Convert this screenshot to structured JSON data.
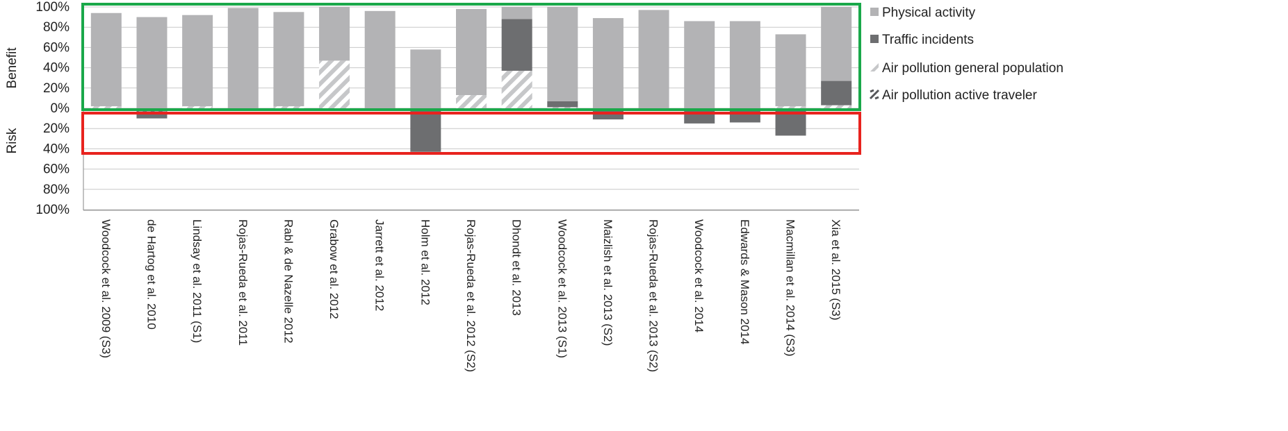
{
  "chart_data": {
    "type": "bar",
    "stacked": true,
    "diverging": true,
    "title": "",
    "ylabel_benefit": "Benefit",
    "ylabel_risk": "Risk",
    "yticks_benefit": [
      "100%",
      "80%",
      "60%",
      "40%",
      "20%",
      "0%"
    ],
    "yticks_risk": [
      "20%",
      "40%",
      "60%",
      "80%",
      "100%"
    ],
    "ylim": [
      -100,
      100
    ],
    "grid": true,
    "legend_position": "right",
    "categories": [
      "Woodcock et al. 2009 (S3)",
      "de Hartog et al. 2010",
      "Lindsay et al. 2011 (S1)",
      "Rojas-Rueda et al. 2011",
      "Rabl & de Nazelle 2012",
      "Grabow et al. 2012",
      "Jarrett et al. 2012",
      "Holm et al. 2012",
      "Rojas-Rueda et al. 2012 (S2)",
      "Dhondt et al. 2013",
      "Woodcock et al. 2013 (S1)",
      "Maizlish et al. 2013 (S2)",
      "Rojas-Rueda et al. 2013 (S2)",
      "Woodcock et al. 2014",
      "Edwards & Mason 2014",
      "Macmillan et al. 2014 (S3)",
      "Xia et al. 2015 (S3)"
    ],
    "series": [
      {
        "name": "Physical activity",
        "color": "#b3b3b5",
        "pattern": "solid",
        "values": [
          92,
          90,
          90,
          99,
          93,
          53,
          96,
          58,
          85,
          12,
          93,
          89,
          97,
          86,
          86,
          71,
          73
        ]
      },
      {
        "name": "Traffic incidents",
        "color": "#6d6e70",
        "pattern": "solid",
        "values": [
          0,
          -7,
          -2,
          0,
          0,
          0,
          0,
          -43,
          0,
          51,
          6,
          -11,
          0,
          -15,
          -14,
          -27,
          24
        ]
      },
      {
        "name": "Air pollution general population",
        "color": "#c6c7c9",
        "pattern": "hatch-light",
        "values": [
          2,
          0,
          2,
          0,
          2,
          47,
          0,
          0,
          13,
          37,
          1,
          0,
          0,
          0,
          0,
          2,
          3
        ]
      },
      {
        "name": "Air pollution active traveler",
        "color": "#555659",
        "pattern": "hatch-dark",
        "values": [
          0,
          -3,
          0,
          0,
          0,
          0,
          0,
          0,
          0,
          0,
          0,
          0,
          0,
          0,
          0,
          0,
          0
        ]
      }
    ],
    "highlight_boxes": [
      {
        "region": "benefit",
        "color": "#1aa84a"
      },
      {
        "region": "risk",
        "color": "#e8231e"
      }
    ]
  }
}
